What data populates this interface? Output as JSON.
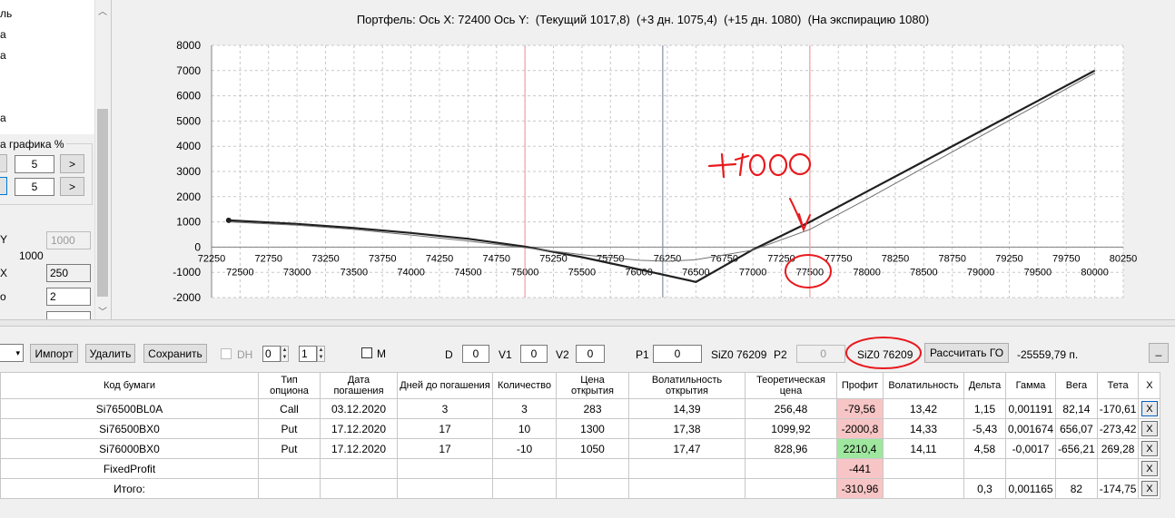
{
  "left_panel": {
    "frag1": "ль",
    "frag2": "а",
    "frag3": "а",
    "frag4": "а",
    "group_title": "а графика %",
    "row1_value": "5",
    "row1_btn": ">",
    "row2_value": "5",
    "row2_btn": ">",
    "y_label": "Y",
    "y_value": "1000",
    "y_static": "1000",
    "x_label": "X",
    "x_value": "250",
    "last_value": "2"
  },
  "chart_data": {
    "type": "line",
    "title": "Портфель: Ось X: 72400 Ось Y:  (Текущий 1017,8)  (+3 дн. 1075,4)  (+15 дн. 1080)  (На экспирацию 1080)",
    "ylim": [
      -2000,
      8000
    ],
    "xlim": [
      72250,
      80250
    ],
    "yticks": [
      "8000",
      "7000",
      "6000",
      "5000",
      "4000",
      "3000",
      "2000",
      "1000",
      "0",
      "-1000",
      "-2000"
    ],
    "xticks_upper": [
      "72250",
      "72750",
      "73250",
      "73750",
      "74250",
      "74750",
      "75250",
      "75750",
      "76250",
      "76750",
      "77250",
      "77750",
      "78250",
      "78750",
      "79250",
      "79750",
      "80250"
    ],
    "xticks_lower": [
      "72500",
      "73000",
      "73500",
      "74000",
      "74500",
      "75000",
      "75500",
      "76000",
      "76500",
      "77000",
      "77500",
      "78000",
      "78500",
      "79000",
      "79500",
      "80000"
    ],
    "vlines": [
      {
        "x": 75000,
        "color": "#f0a0a0"
      },
      {
        "x": 76209,
        "color": "#8090a0"
      },
      {
        "x": 77500,
        "color": "#f0a0a0"
      }
    ],
    "series": [
      {
        "x": [
          72400,
          73000,
          73500,
          74000,
          74500,
          75000,
          75500,
          76000,
          76500,
          77000,
          77500,
          78000,
          78500,
          79000,
          79500,
          80000
        ],
        "y": [
          1060,
          920,
          760,
          560,
          330,
          20,
          -400,
          -880,
          -1380,
          -100,
          1000,
          2200,
          3400,
          4600,
          5800,
          7000
        ],
        "color": "#202020",
        "width": 2.2
      },
      {
        "x": [
          72400,
          73000,
          73500,
          74000,
          74500,
          75000,
          75500,
          76000,
          76250,
          76500,
          77000,
          77500,
          78000,
          78500,
          79000,
          79500,
          80000
        ],
        "y": [
          1000,
          870,
          700,
          480,
          240,
          -20,
          -300,
          -520,
          -560,
          -500,
          -120,
          700,
          1900,
          3150,
          4400,
          5650,
          6900
        ],
        "color": "#707070",
        "width": 1
      }
    ]
  },
  "annotation": {
    "text": "+1000"
  },
  "toolbar": {
    "import": "Импорт",
    "delete": "Удалить",
    "save": "Сохранить",
    "dh": "DH",
    "spin1": "0",
    "spin2": "1",
    "m": "M",
    "d": "D",
    "d_val": "0",
    "v1": "V1",
    "v1_val": "0",
    "v2": "V2",
    "v2_val": "0",
    "p1": "P1",
    "p1_val": "0",
    "sym1": "SiZ0 76209",
    "p2": "P2",
    "p2_val": "0",
    "sym2": "SiZ0 76209",
    "calc": "Рассчитать ГО",
    "total": "-25559,79 п.",
    "minimize": "_"
  },
  "table": {
    "headers": [
      "Код бумаги",
      "Тип опциона",
      "Дата погашения",
      "Дней до погашения",
      "Количество",
      "Цена открытия",
      "Волатильность открытия",
      "Теоретическая цена",
      "Профит",
      "Волатильность",
      "Дельта",
      "Гамма",
      "Вега",
      "Тета",
      "X"
    ],
    "rows": [
      [
        "Si76500BL0A",
        "Call",
        "03.12.2020",
        "3",
        "3",
        "283",
        "14,39",
        "256,48",
        "-79,56",
        "13,42",
        "1,15",
        "0,001191",
        "82,14",
        "-170,61",
        "X"
      ],
      [
        "Si76500BX0",
        "Put",
        "17.12.2020",
        "17",
        "10",
        "1300",
        "17,38",
        "1099,92",
        "-2000,8",
        "14,33",
        "-5,43",
        "0,001674",
        "656,07",
        "-273,42",
        "X"
      ],
      [
        "Si76000BX0",
        "Put",
        "17.12.2020",
        "17",
        "-10",
        "1050",
        "17,47",
        "828,96",
        "2210,4",
        "14,11",
        "4,58",
        "-0,0017",
        "-656,21",
        "269,28",
        "X"
      ],
      [
        "FixedProfit",
        "",
        "",
        "",
        "",
        "",
        "",
        "",
        "-441",
        "",
        "",
        "",
        "",
        "",
        "X"
      ],
      [
        "Итого:",
        "",
        "",
        "",
        "",
        "",
        "",
        "",
        "-310,96",
        "",
        "0,3",
        "0,001165",
        "82",
        "-174,75",
        "X"
      ]
    ],
    "profit_sign": [
      "neg",
      "neg",
      "pos",
      "neg",
      "neg"
    ]
  }
}
